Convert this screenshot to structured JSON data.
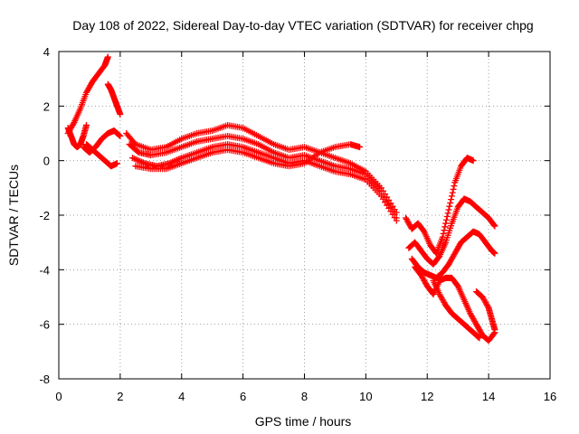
{
  "chart_data": {
    "type": "scatter",
    "title": "Day 108 of 2022, Sidereal Day-to-day VTEC variation (SDTVAR) for receiver chpg",
    "xlabel": "GPS time / hours",
    "ylabel": "SDTVAR / TECUs",
    "xlim": [
      0,
      16
    ],
    "ylim": [
      -8,
      4
    ],
    "xticks": [
      0,
      2,
      4,
      6,
      8,
      10,
      12,
      14,
      16
    ],
    "yticks": [
      -8,
      -6,
      -4,
      -2,
      0,
      2,
      4
    ],
    "grid": true,
    "marker": "+",
    "color": "#ff0000",
    "series": [
      {
        "x": [
          0.3,
          0.5,
          0.7,
          0.9,
          1.1,
          1.3,
          1.5,
          1.6
        ],
        "y": [
          1.0,
          1.4,
          1.9,
          2.5,
          2.9,
          3.2,
          3.5,
          3.8
        ]
      },
      {
        "x": [
          1.6,
          1.7,
          1.8,
          1.9,
          2.0
        ],
        "y": [
          2.8,
          2.6,
          2.3,
          2.0,
          1.7
        ]
      },
      {
        "x": [
          0.3,
          0.4,
          0.5,
          0.6,
          0.7,
          0.8,
          0.9
        ],
        "y": [
          1.2,
          0.9,
          0.6,
          0.5,
          0.6,
          0.9,
          1.3
        ]
      },
      {
        "x": [
          0.8,
          1.0,
          1.2,
          1.4,
          1.6,
          1.8,
          2.0
        ],
        "y": [
          0.5,
          0.3,
          0.5,
          0.8,
          1.0,
          1.1,
          0.9
        ]
      },
      {
        "x": [
          0.9,
          1.1,
          1.3,
          1.5,
          1.7,
          1.9
        ],
        "y": [
          0.6,
          0.4,
          0.2,
          0.0,
          -0.2,
          -0.1
        ]
      },
      {
        "x": [
          2.2,
          2.5,
          3.0,
          3.5,
          4.0,
          4.5,
          5.0,
          5.5,
          6.0,
          6.5,
          7.0,
          7.5,
          8.0,
          8.5,
          9.0,
          9.5,
          10.0,
          10.5,
          11.0
        ],
        "y": [
          1.0,
          0.6,
          0.4,
          0.5,
          0.8,
          1.0,
          1.1,
          1.3,
          1.2,
          0.9,
          0.6,
          0.4,
          0.5,
          0.3,
          0.1,
          -0.1,
          -0.4,
          -1.0,
          -1.9
        ]
      },
      {
        "x": [
          2.3,
          2.6,
          3.0,
          3.5,
          4.0,
          4.5,
          5.0,
          5.5,
          6.0,
          6.5,
          7.0,
          7.5,
          8.0,
          8.5,
          9.0,
          9.5,
          10.0,
          10.5,
          11.0
        ],
        "y": [
          0.6,
          0.3,
          0.2,
          0.3,
          0.5,
          0.7,
          0.8,
          0.9,
          0.8,
          0.6,
          0.3,
          0.1,
          0.2,
          0.0,
          -0.2,
          -0.3,
          -0.5,
          -1.1,
          -2.1
        ]
      },
      {
        "x": [
          2.4,
          2.8,
          3.2,
          3.6,
          4.0,
          4.5,
          5.0,
          5.5,
          6.0,
          6.5,
          7.0,
          7.5,
          8.0,
          8.5,
          9.0,
          9.5,
          10.0,
          10.5,
          11.0
        ],
        "y": [
          0.1,
          -0.1,
          -0.2,
          -0.1,
          0.1,
          0.3,
          0.5,
          0.6,
          0.5,
          0.3,
          0.1,
          -0.1,
          0.0,
          -0.2,
          -0.4,
          -0.5,
          -0.7,
          -1.3,
          -2.2
        ]
      },
      {
        "x": [
          2.5,
          3.0,
          3.5,
          4.0,
          4.5,
          5.0,
          5.5,
          6.0,
          6.5,
          7.0,
          7.5,
          8.0,
          8.5,
          9.0,
          9.5,
          9.8
        ],
        "y": [
          -0.2,
          -0.3,
          -0.3,
          -0.1,
          0.1,
          0.3,
          0.4,
          0.3,
          0.1,
          -0.1,
          -0.2,
          -0.1,
          0.3,
          0.5,
          0.6,
          0.5
        ]
      },
      {
        "x": [
          11.3,
          11.5,
          11.7,
          11.9,
          12.1,
          12.3,
          12.5,
          12.7,
          12.9,
          13.1,
          13.3,
          13.5
        ],
        "y": [
          -2.1,
          -2.5,
          -2.3,
          -2.6,
          -3.1,
          -3.4,
          -2.8,
          -1.8,
          -0.8,
          -0.2,
          0.1,
          0.0
        ]
      },
      {
        "x": [
          11.4,
          11.6,
          11.8,
          12.0,
          12.2,
          12.4,
          12.6,
          12.8,
          13.0,
          13.2,
          13.4,
          13.6,
          13.8,
          14.0,
          14.2
        ],
        "y": [
          -3.2,
          -3.0,
          -3.3,
          -3.6,
          -3.8,
          -3.5,
          -3.0,
          -2.3,
          -1.7,
          -1.4,
          -1.5,
          -1.7,
          -1.9,
          -2.1,
          -2.4
        ]
      },
      {
        "x": [
          11.5,
          11.7,
          11.9,
          12.1,
          12.3,
          12.5,
          12.7,
          12.9,
          13.1,
          13.3,
          13.5,
          13.7,
          13.9,
          14.1,
          14.2
        ],
        "y": [
          -3.6,
          -3.9,
          -4.1,
          -4.2,
          -4.3,
          -4.1,
          -3.8,
          -3.4,
          -3.0,
          -2.8,
          -2.6,
          -2.7,
          -3.0,
          -3.3,
          -3.4
        ]
      },
      {
        "x": [
          11.6,
          11.8,
          12.0,
          12.2,
          12.4,
          12.6,
          12.8,
          13.0,
          13.2,
          13.4,
          13.6,
          13.8,
          14.0,
          14.2
        ],
        "y": [
          -3.9,
          -4.2,
          -4.6,
          -4.9,
          -4.4,
          -4.3,
          -4.3,
          -4.6,
          -5.1,
          -5.6,
          -6.0,
          -6.4,
          -6.6,
          -6.3
        ]
      },
      {
        "x": [
          12.2,
          12.4,
          12.6,
          12.8,
          13.0,
          13.2,
          13.4,
          13.6,
          13.7
        ],
        "y": [
          -4.4,
          -4.9,
          -5.3,
          -5.6,
          -5.8,
          -6.0,
          -6.2,
          -6.4,
          -6.5
        ]
      },
      {
        "x": [
          13.6,
          13.8,
          14.0,
          14.1,
          14.2
        ],
        "y": [
          -4.8,
          -5.0,
          -5.4,
          -5.8,
          -6.2
        ]
      }
    ]
  }
}
